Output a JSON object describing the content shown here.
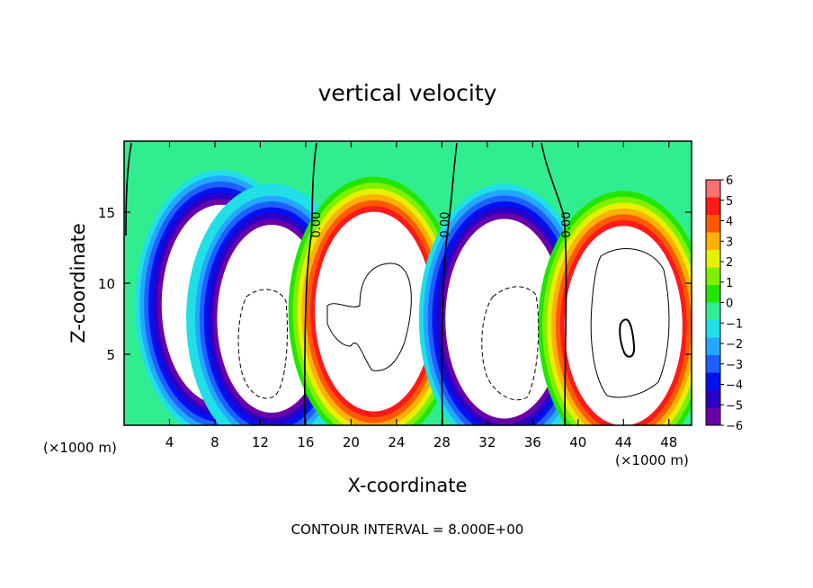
{
  "chart_data": {
    "type": "heatmap",
    "title": "vertical velocity",
    "xlabel": "X-coordinate",
    "ylabel": "Z-coordinate",
    "x_unit": "(×1000 m)",
    "x_unit_right": "(×1000 m)",
    "footer": "CONTOUR INTERVAL = 8.000E+00",
    "xlim": [
      0,
      50
    ],
    "ylim": [
      0,
      20
    ],
    "x_ticks": [
      4,
      8,
      12,
      16,
      20,
      24,
      28,
      32,
      36,
      40,
      44,
      48
    ],
    "y_ticks": [
      5,
      10,
      15
    ],
    "colorbar": {
      "min": -6,
      "max": 6,
      "ticks": [
        6,
        5,
        4,
        3,
        2,
        1,
        0,
        -1,
        -2,
        -3,
        -4,
        -5,
        -6
      ],
      "tick_labels": [
        "6",
        "5",
        "4",
        "3",
        "2",
        "1",
        "0",
        "−1",
        "−2",
        "−3",
        "−4",
        "−5",
        "−6"
      ],
      "colors": [
        "#6a00a8",
        "#2a00c8",
        "#0010f0",
        "#1e60ff",
        "#22a8ff",
        "#20e0e6",
        "#30ee90",
        "#22e600",
        "#7ef000",
        "#e6f000",
        "#ffb000",
        "#ff5a00",
        "#ff1a1a",
        "#ff7070"
      ]
    },
    "contour_labels": [
      "0.00",
      "0.00",
      "0.00"
    ],
    "cells": [
      {
        "x": 8.5,
        "z": 8.5,
        "w": -12
      },
      {
        "x": 13,
        "z": 7.5,
        "w": -11
      },
      {
        "x": 22,
        "z": 8,
        "w": 12
      },
      {
        "x": 33.5,
        "z": 7.5,
        "w": -12
      },
      {
        "x": 44,
        "z": 7,
        "w": 13
      }
    ]
  }
}
